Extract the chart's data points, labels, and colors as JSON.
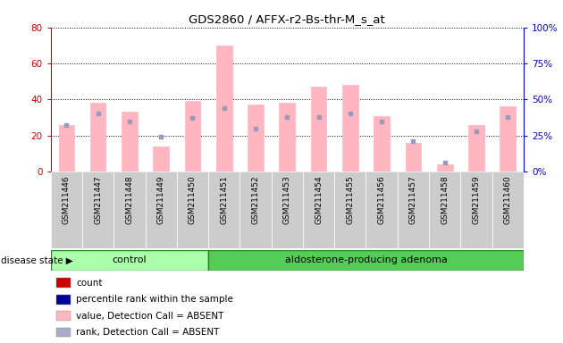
{
  "title": "GDS2860 / AFFX-r2-Bs-thr-M_s_at",
  "samples": [
    "GSM211446",
    "GSM211447",
    "GSM211448",
    "GSM211449",
    "GSM211450",
    "GSM211451",
    "GSM211452",
    "GSM211453",
    "GSM211454",
    "GSM211455",
    "GSM211456",
    "GSM211457",
    "GSM211458",
    "GSM211459",
    "GSM211460"
  ],
  "bar_values": [
    26,
    38,
    33,
    14,
    39,
    70,
    37,
    38,
    47,
    48,
    31,
    16,
    4,
    26,
    36
  ],
  "dot_values": [
    32,
    40,
    35,
    24,
    37,
    44,
    30,
    38,
    38,
    40,
    35,
    21,
    6,
    28,
    38
  ],
  "ylim_left": [
    0,
    80
  ],
  "ylim_right": [
    0,
    100
  ],
  "left_yticks": [
    0,
    20,
    40,
    60,
    80
  ],
  "right_yticks": [
    0,
    25,
    50,
    75,
    100
  ],
  "bar_color": "#FFB6C1",
  "dot_color": "#9999BB",
  "control_group_count": 5,
  "adenoma_group_count": 10,
  "control_label": "control",
  "adenoma_label": "aldosterone-producing adenoma",
  "disease_state_label": "disease state",
  "legend_items": [
    {
      "label": "count",
      "color": "#CC0000"
    },
    {
      "label": "percentile rank within the sample",
      "color": "#000099"
    },
    {
      "label": "value, Detection Call = ABSENT",
      "color": "#FFB6C1"
    },
    {
      "label": "rank, Detection Call = ABSENT",
      "color": "#AAAACC"
    }
  ],
  "left_axis_color": "#CC0000",
  "right_axis_color": "#0000CC",
  "grid_color": "#000000",
  "cell_bg": "#CCCCCC",
  "control_color": "#AAFFAA",
  "adenoma_color": "#55CC55",
  "green_edge": "#228822"
}
